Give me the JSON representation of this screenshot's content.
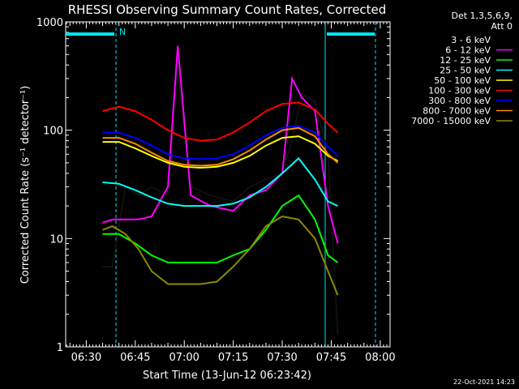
{
  "chart_data": {
    "type": "line",
    "title": "RHESSI Observing Summary Count Rates, Corrected",
    "xlabel": "Start Time (13-Jun-12 06:23:42)",
    "ylabel": "Corrected Count Rate (s⁻¹ detector⁻¹)",
    "y_scale": "log",
    "ylim": [
      1,
      1000
    ],
    "xlim": [
      "06:23:42",
      "08:03:00"
    ],
    "y_ticks": [
      {
        "value": 1,
        "label": "1"
      },
      {
        "value": 10,
        "label": "10"
      },
      {
        "value": 100,
        "label": "100"
      },
      {
        "value": 1000,
        "label": "1000"
      }
    ],
    "x_ticks": [
      {
        "value": "06:30",
        "label": "06:30"
      },
      {
        "value": "06:45",
        "label": "06:45"
      },
      {
        "value": "07:00",
        "label": "07:00"
      },
      {
        "value": "07:15",
        "label": "07:15"
      },
      {
        "value": "07:30",
        "label": "07:30"
      },
      {
        "value": "07:45",
        "label": "07:45"
      },
      {
        "value": "08:00",
        "label": "08:00"
      }
    ],
    "legend_header": [
      "Det 1,3,5,6,9,",
      "Att 0"
    ],
    "legend_position": "right",
    "annotations": {
      "night_label": "N",
      "attenuator_state_color": "#00e5ee"
    },
    "series": [
      {
        "name": "3 - 6 keV",
        "color": "#000000",
        "x": [
          "06:35",
          "06:38",
          "06:42",
          "06:46",
          "06:50",
          "06:55",
          "06:58",
          "07:02",
          "07:08",
          "07:15",
          "07:20",
          "07:25",
          "07:30",
          "07:33",
          "07:36",
          "07:40",
          "07:44",
          "07:47"
        ],
        "y": [
          5.5,
          5.5,
          30,
          25,
          30,
          25,
          340,
          30,
          25,
          22,
          30,
          35,
          40,
          80,
          220,
          180,
          60,
          1.3
        ]
      },
      {
        "name": "6 - 12 keV",
        "color": "#ff00ff",
        "x": [
          "06:35",
          "06:38",
          "06:42",
          "06:46",
          "06:50",
          "06:55",
          "06:58",
          "07:02",
          "07:08",
          "07:15",
          "07:20",
          "07:25",
          "07:30",
          "07:33",
          "07:36",
          "07:40",
          "07:44",
          "07:47"
        ],
        "y": [
          14,
          15,
          15,
          15,
          16,
          30,
          600,
          25,
          20,
          18,
          25,
          28,
          40,
          300,
          200,
          150,
          20,
          9
        ]
      },
      {
        "name": "12 - 25 keV",
        "color": "#00ff00",
        "x": [
          "06:35",
          "06:40",
          "06:45",
          "06:50",
          "06:55",
          "07:00",
          "07:05",
          "07:10",
          "07:15",
          "07:20",
          "07:25",
          "07:30",
          "07:35",
          "07:40",
          "07:44",
          "07:47"
        ],
        "y": [
          11,
          11,
          9,
          7,
          6,
          6,
          6,
          6,
          7,
          8,
          12,
          20,
          25,
          15,
          7,
          6
        ]
      },
      {
        "name": "25 - 50 keV",
        "color": "#00ffff",
        "x": [
          "06:35",
          "06:40",
          "06:45",
          "06:50",
          "06:55",
          "07:00",
          "07:05",
          "07:10",
          "07:15",
          "07:20",
          "07:25",
          "07:30",
          "07:35",
          "07:40",
          "07:44",
          "07:47"
        ],
        "y": [
          33,
          32,
          28,
          24,
          21,
          20,
          20,
          20,
          21,
          24,
          30,
          40,
          55,
          35,
          22,
          20
        ]
      },
      {
        "name": "50 - 100 keV",
        "color": "#ffff00",
        "x": [
          "06:35",
          "06:40",
          "06:45",
          "06:50",
          "06:55",
          "07:00",
          "07:05",
          "07:10",
          "07:15",
          "07:20",
          "07:25",
          "07:30",
          "07:35",
          "07:40",
          "07:44",
          "07:47"
        ],
        "y": [
          78,
          78,
          68,
          58,
          50,
          46,
          45,
          46,
          50,
          58,
          72,
          85,
          88,
          75,
          58,
          52
        ]
      },
      {
        "name": "100 - 300 keV",
        "color": "#ff0000",
        "x": [
          "06:35",
          "06:40",
          "06:45",
          "06:50",
          "06:55",
          "07:00",
          "07:05",
          "07:10",
          "07:15",
          "07:20",
          "07:25",
          "07:30",
          "07:35",
          "07:40",
          "07:44",
          "07:47"
        ],
        "y": [
          150,
          165,
          150,
          125,
          100,
          85,
          80,
          82,
          95,
          118,
          150,
          175,
          180,
          155,
          115,
          95
        ]
      },
      {
        "name": "300 - 800 keV",
        "color": "#0000ff",
        "x": [
          "06:35",
          "06:40",
          "06:45",
          "06:50",
          "06:55",
          "07:00",
          "07:05",
          "07:10",
          "07:15",
          "07:20",
          "07:25",
          "07:30",
          "07:35",
          "07:40",
          "07:44",
          "07:47"
        ],
        "y": [
          95,
          95,
          85,
          72,
          60,
          55,
          54,
          55,
          60,
          72,
          90,
          105,
          110,
          95,
          70,
          58
        ]
      },
      {
        "name": "800 - 7000 keV",
        "color": "#ff8c00",
        "x": [
          "06:35",
          "06:40",
          "06:45",
          "06:50",
          "06:55",
          "07:00",
          "07:05",
          "07:10",
          "07:15",
          "07:20",
          "07:25",
          "07:30",
          "07:35",
          "07:40",
          "07:44",
          "07:47"
        ],
        "y": [
          85,
          85,
          75,
          62,
          52,
          48,
          47,
          48,
          54,
          65,
          82,
          100,
          105,
          88,
          60,
          50
        ]
      },
      {
        "name": "7000 - 15000 keV",
        "color": "#8b8b00",
        "x": [
          "06:35",
          "06:38",
          "06:42",
          "06:46",
          "06:50",
          "06:55",
          "07:00",
          "07:05",
          "07:10",
          "07:15",
          "07:20",
          "07:25",
          "07:30",
          "07:35",
          "07:40",
          "07:44",
          "07:47"
        ],
        "y": [
          12,
          13,
          11,
          8,
          5,
          3.8,
          3.8,
          3.8,
          4,
          5.5,
          8,
          13,
          16,
          15,
          10,
          5,
          3
        ]
      }
    ]
  },
  "timestamp": "22-Oct-2021 14:23"
}
